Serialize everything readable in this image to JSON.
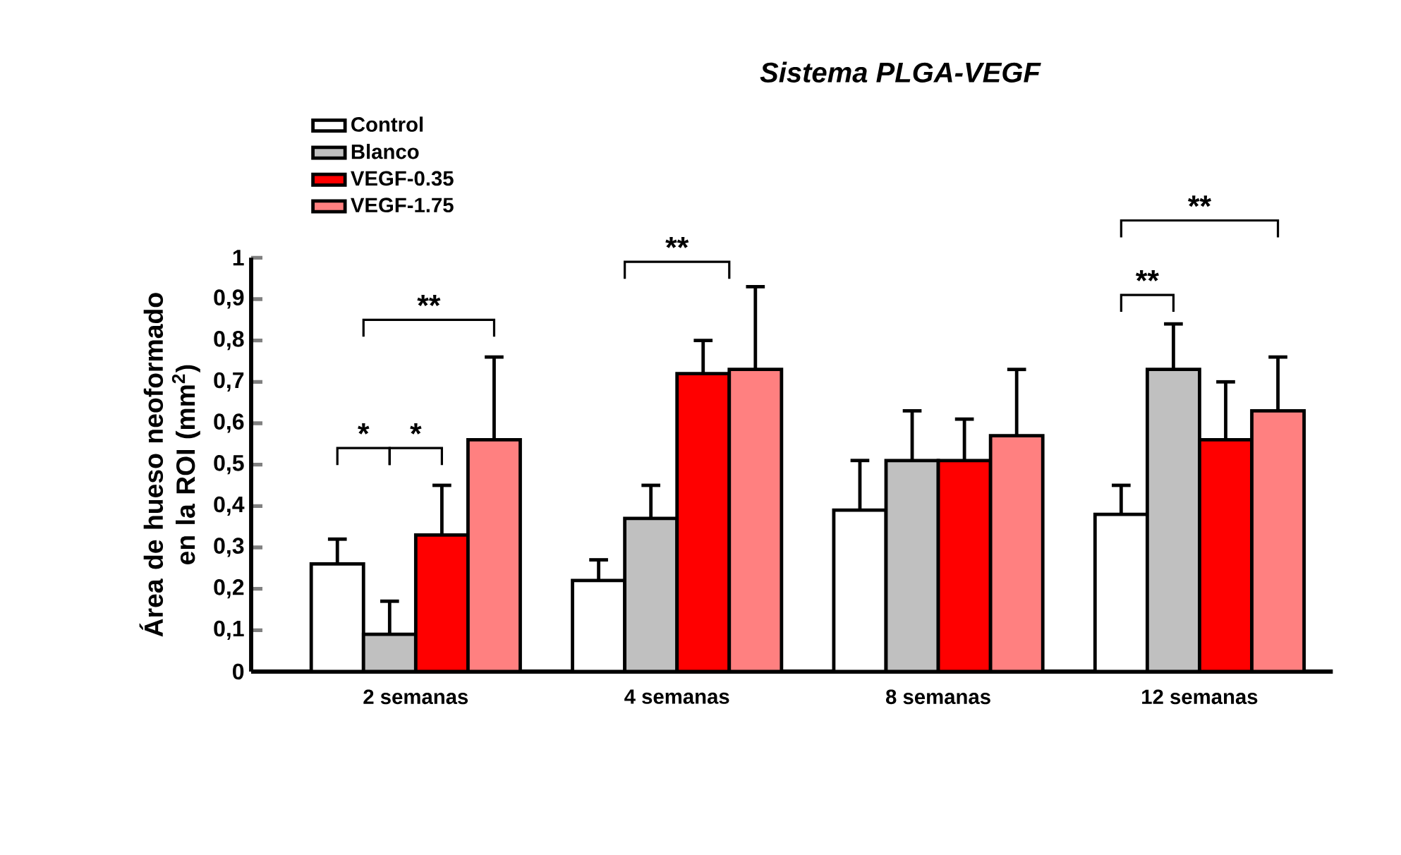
{
  "chart_data": {
    "type": "bar",
    "title": "Sistema PLGA-VEGF",
    "ylabel": "Área de hueso neoformado en la ROI (mm$^{2}$)",
    "categories": [
      "2 semanas",
      "4 semanas",
      "8 semanas",
      "12 semanas"
    ],
    "series": [
      {
        "name": "Control",
        "color": "#ffffff",
        "values": [
          0.26,
          0.22,
          0.39,
          0.38
        ],
        "errors": [
          [
            0.26,
            0.32
          ],
          [
            0.22,
            0.27
          ],
          [
            0.39,
            0.51
          ],
          [
            0.38,
            0.45
          ]
        ]
      },
      {
        "name": "Blanco",
        "color": "#c0c0c0",
        "values": [
          0.09,
          0.37,
          0.51,
          0.73
        ],
        "errors": [
          [
            0.09,
            0.17
          ],
          [
            0.37,
            0.45
          ],
          [
            0.51,
            0.63
          ],
          [
            0.73,
            0.84
          ]
        ]
      },
      {
        "name": "VEGF-0.35",
        "color": "#ff0000",
        "values": [
          0.33,
          0.72,
          0.51,
          0.56
        ],
        "errors": [
          [
            0.33,
            0.45
          ],
          [
            0.72,
            0.8
          ],
          [
            0.51,
            0.61
          ],
          [
            0.56,
            0.7
          ]
        ]
      },
      {
        "name": "VEGF-1.75",
        "color": "#ff8080",
        "values": [
          0.56,
          0.73,
          0.57,
          0.63
        ],
        "errors": [
          [
            0.56,
            0.76
          ],
          [
            0.73,
            0.93
          ],
          [
            0.57,
            0.73
          ],
          [
            0.63,
            0.76
          ]
        ]
      }
    ],
    "ylim": [
      0,
      1
    ],
    "yticks": [
      0,
      {
        "value": 0.1,
        "label": "0,1"
      },
      {
        "value": 0.2,
        "label": "0,2"
      },
      {
        "value": 0.3,
        "label": "0,3"
      },
      {
        "value": 0.4,
        "label": "0,4"
      },
      {
        "value": 0.5,
        "label": "0,5"
      },
      {
        "value": 0.6,
        "label": "0,6"
      },
      {
        "value": 0.7,
        "label": "0,7"
      },
      {
        "value": 0.8,
        "label": "0,8"
      },
      {
        "value": 0.9,
        "label": "0,9"
      },
      1
    ],
    "legend": "top left",
    "annotations": [
      "*",
      "*",
      "**",
      "**",
      "**",
      "**"
    ]
  }
}
